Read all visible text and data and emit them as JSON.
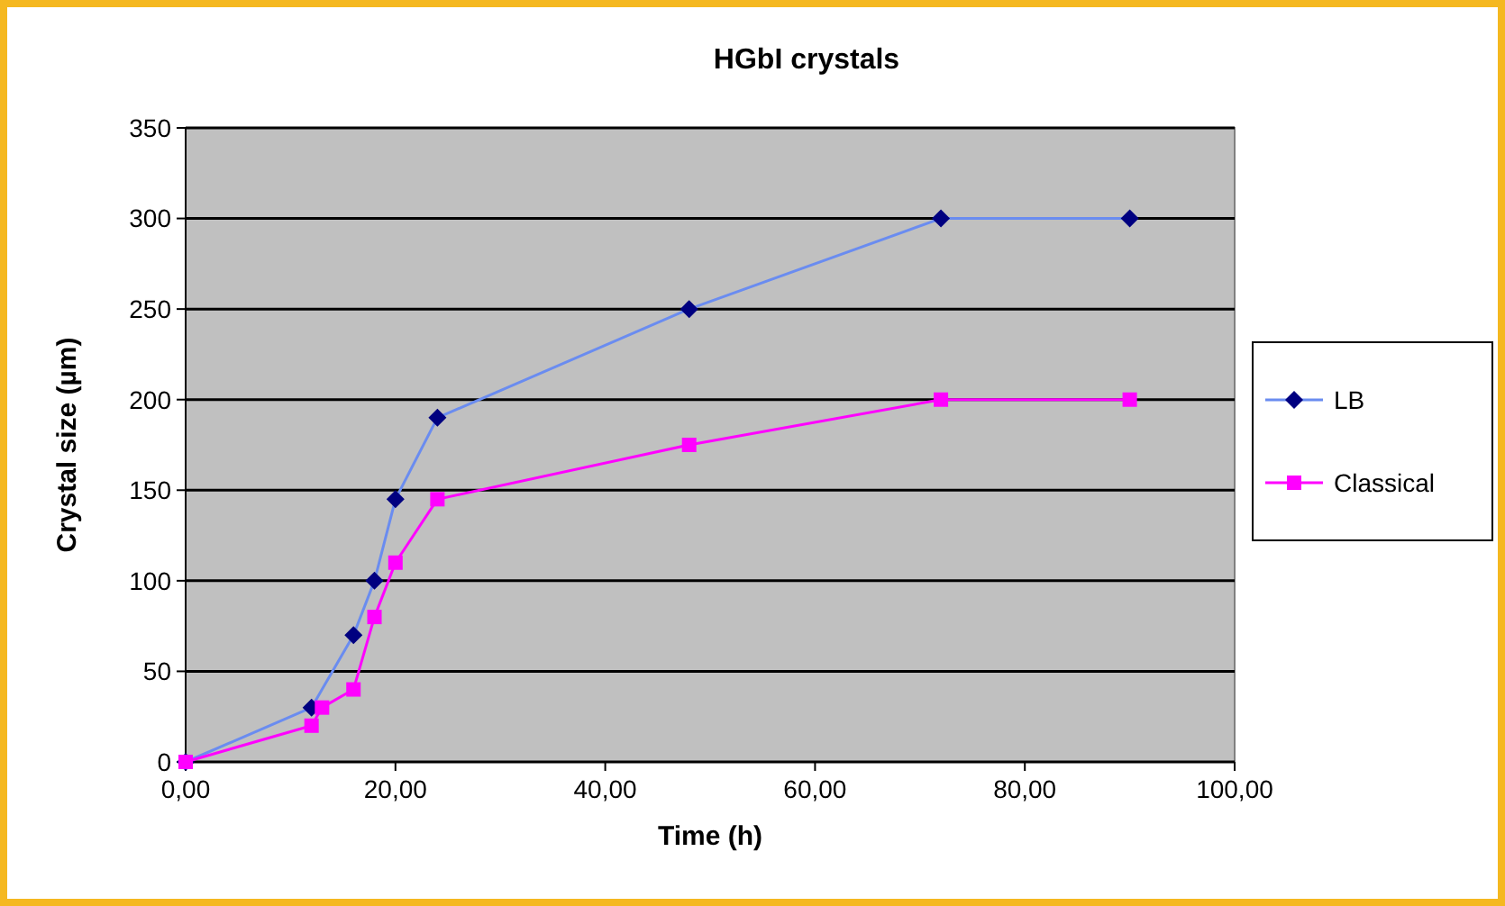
{
  "chart_data": {
    "type": "line",
    "title": "HGbI crystals",
    "xlabel": "Time (h)",
    "ylabel": "Crystal size (µm)",
    "xlim": [
      0,
      100
    ],
    "xticks": [
      {
        "value": 0,
        "label": "0,00"
      },
      {
        "value": 20,
        "label": "20,00"
      },
      {
        "value": 40,
        "label": "40,00"
      },
      {
        "value": 60,
        "label": "60,00"
      },
      {
        "value": 80,
        "label": "80,00"
      },
      {
        "value": 100,
        "label": "100,00"
      }
    ],
    "ylim": [
      0,
      350
    ],
    "yticks": [
      0,
      50,
      100,
      150,
      200,
      250,
      300,
      350
    ],
    "grid": "y",
    "legend": "right",
    "series": [
      {
        "name": "LB",
        "color": "#6a8cf0",
        "marker": "diamond",
        "x": [
          0,
          12,
          16,
          18,
          20,
          24,
          48,
          72,
          90
        ],
        "values": [
          0,
          30,
          70,
          100,
          145,
          190,
          250,
          300,
          300
        ]
      },
      {
        "name": "Classical",
        "color": "#ff00ff",
        "marker": "square",
        "x": [
          0,
          12,
          13,
          16,
          18,
          20,
          24,
          48,
          72,
          90
        ],
        "values": [
          0,
          20,
          30,
          40,
          80,
          110,
          145,
          175,
          200,
          200
        ]
      }
    ]
  }
}
